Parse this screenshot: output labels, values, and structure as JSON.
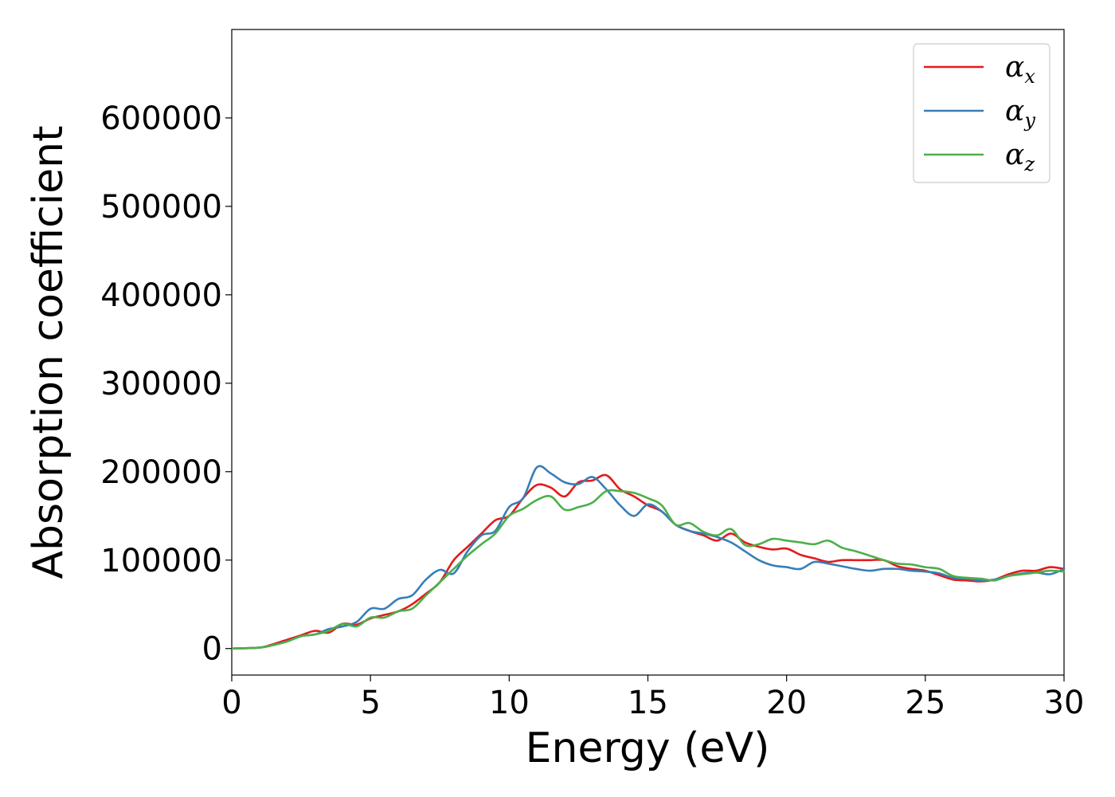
{
  "chart_data": {
    "type": "line",
    "title": "",
    "xlabel": "Energy (eV)",
    "ylabel": "Absorption coefficient",
    "xlim": [
      0,
      30
    ],
    "ylim": [
      -30000,
      700000
    ],
    "x_ticks": [
      0,
      5,
      10,
      15,
      20,
      25,
      30
    ],
    "y_ticks": [
      0,
      100000,
      200000,
      300000,
      400000,
      500000,
      600000
    ],
    "grid": false,
    "legend_position": "top-right",
    "series": [
      {
        "name": "α",
        "subscript": "x",
        "color": "#e41a1c",
        "x": [
          0,
          1,
          1.5,
          2,
          2.5,
          3,
          3.5,
          4,
          4.5,
          5,
          5.5,
          6,
          6.5,
          7,
          7.5,
          8,
          8.5,
          9,
          9.5,
          10,
          10.5,
          11,
          11.5,
          12,
          12.5,
          13,
          13.5,
          14,
          14.5,
          15,
          15.5,
          16,
          16.5,
          17,
          17.5,
          18,
          18.5,
          19,
          19.5,
          20,
          20.5,
          21,
          21.5,
          22,
          22.5,
          23,
          23.5,
          24,
          24.5,
          25,
          25.5,
          26,
          26.5,
          27,
          27.5,
          28,
          28.5,
          29,
          29.5,
          30
        ],
        "values": [
          0,
          1000,
          5000,
          10000,
          15000,
          20000,
          18000,
          28000,
          27000,
          34000,
          38000,
          42000,
          50000,
          62000,
          75000,
          100000,
          115000,
          130000,
          145000,
          150000,
          170000,
          185000,
          182000,
          172000,
          188000,
          190000,
          196000,
          180000,
          172000,
          162000,
          155000,
          140000,
          133000,
          128000,
          122000,
          130000,
          120000,
          115000,
          112000,
          113000,
          106000,
          102000,
          98000,
          100000,
          100000,
          100000,
          100000,
          93000,
          90000,
          88000,
          83000,
          78000,
          77000,
          76000,
          78000,
          84000,
          88000,
          88000,
          92000,
          90000
        ]
      },
      {
        "name": "α",
        "subscript": "y",
        "color": "#377eb8",
        "x": [
          0,
          1,
          1.5,
          2,
          2.5,
          3,
          3.5,
          4,
          4.5,
          5,
          5.5,
          6,
          6.5,
          7,
          7.5,
          8,
          8.5,
          9,
          9.5,
          10,
          10.5,
          11,
          11.5,
          12,
          12.5,
          13,
          13.5,
          14,
          14.5,
          15,
          15.5,
          16,
          16.5,
          17,
          17.5,
          18,
          18.5,
          19,
          19.5,
          20,
          20.5,
          21,
          21.5,
          22,
          22.5,
          23,
          23.5,
          24,
          24.5,
          25,
          25.5,
          26,
          26.5,
          27,
          27.5,
          28,
          28.5,
          29,
          29.5,
          30
        ],
        "values": [
          0,
          1000,
          4000,
          8000,
          14000,
          16000,
          22000,
          25000,
          30000,
          45000,
          45000,
          56000,
          60000,
          78000,
          89000,
          85000,
          110000,
          128000,
          133000,
          160000,
          170000,
          205000,
          198000,
          188000,
          186000,
          194000,
          180000,
          162000,
          150000,
          163000,
          155000,
          140000,
          133000,
          130000,
          126000,
          120000,
          110000,
          100000,
          94000,
          92000,
          90000,
          98000,
          96000,
          93000,
          90000,
          88000,
          90000,
          90000,
          88000,
          87000,
          85000,
          80000,
          79000,
          77000,
          78000,
          82000,
          85000,
          86000,
          84000,
          90000
        ]
      },
      {
        "name": "α",
        "subscript": "z",
        "color": "#4daf4a",
        "x": [
          0,
          1,
          1.5,
          2,
          2.5,
          3,
          3.5,
          4,
          4.5,
          5,
          5.5,
          6,
          6.5,
          7,
          7.5,
          8,
          8.5,
          9,
          9.5,
          10,
          10.5,
          11,
          11.5,
          12,
          12.5,
          13,
          13.5,
          14,
          14.5,
          15,
          15.5,
          16,
          16.5,
          17,
          17.5,
          18,
          18.5,
          19,
          19.5,
          20,
          20.5,
          21,
          21.5,
          22,
          22.5,
          23,
          23.5,
          24,
          24.5,
          25,
          25.5,
          26,
          26.5,
          27,
          27.5,
          28,
          28.5,
          29,
          29.5,
          30
        ],
        "values": [
          0,
          1000,
          4000,
          8000,
          14000,
          16000,
          20000,
          28000,
          25000,
          35000,
          35000,
          42000,
          45000,
          60000,
          75000,
          90000,
          105000,
          118000,
          130000,
          150000,
          158000,
          168000,
          172000,
          157000,
          160000,
          165000,
          178000,
          178000,
          176000,
          170000,
          162000,
          140000,
          142000,
          132000,
          128000,
          135000,
          117000,
          118000,
          124000,
          122000,
          120000,
          118000,
          122000,
          114000,
          110000,
          105000,
          100000,
          96000,
          95000,
          92000,
          90000,
          82000,
          80000,
          79000,
          77000,
          82000,
          84000,
          86000,
          88000,
          87000
        ]
      }
    ]
  }
}
